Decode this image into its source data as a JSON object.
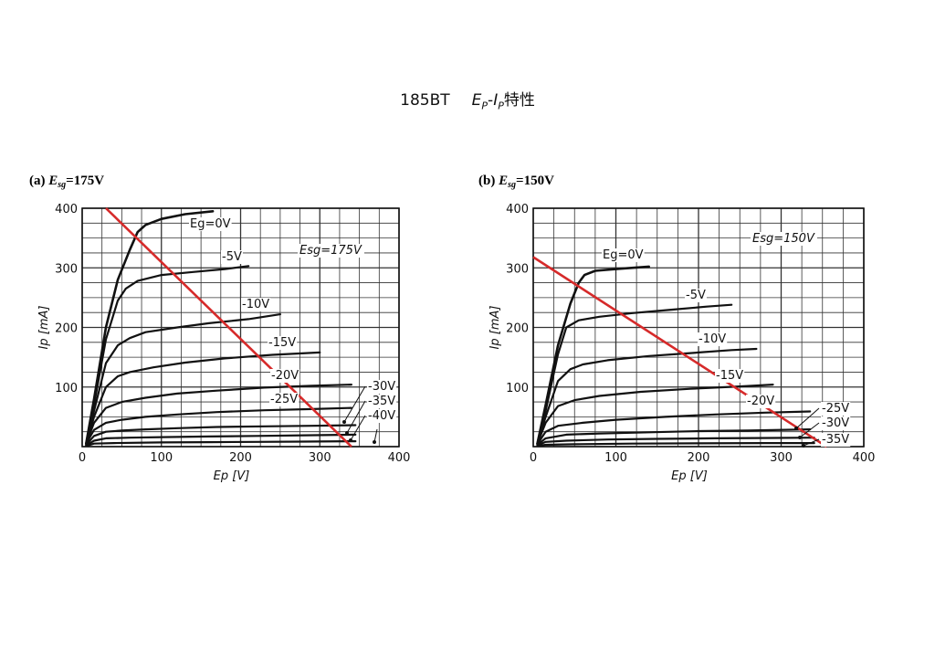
{
  "title": {
    "tube": "185BT",
    "characteristic_part1": "E",
    "characteristic_sub1": "P",
    "characteristic_dash": "-",
    "characteristic_part2": "I",
    "characteristic_sub2": "P",
    "characteristic_suffix": "特性"
  },
  "colors": {
    "load_line": "#d62a2a",
    "curve": "#111111",
    "grid": "#333333"
  },
  "chart_data": [
    {
      "type": "line",
      "panel_label": "(a)",
      "condition_symbol": "E",
      "condition_sub": "sg",
      "condition_value": "=175V",
      "param_text": "Esg=175V",
      "xlabel": "Ep [V]",
      "ylabel": "Ip [mA]",
      "xlim": [
        0,
        400
      ],
      "ylim": [
        0,
        400
      ],
      "xticks": [
        "0",
        "100",
        "200",
        "300",
        "400"
      ],
      "yticks": [
        "100",
        "200",
        "300",
        "400"
      ],
      "grid": true,
      "series": [
        {
          "name": "Eg=0V",
          "x": [
            5,
            15,
            30,
            45,
            60,
            70,
            80,
            100,
            130,
            165
          ],
          "y": [
            5,
            80,
            200,
            280,
            330,
            360,
            372,
            382,
            390,
            395
          ]
        },
        {
          "name": "-5V",
          "x": [
            5,
            15,
            30,
            45,
            55,
            70,
            100,
            140,
            180,
            210
          ],
          "y": [
            5,
            70,
            180,
            245,
            265,
            278,
            288,
            293,
            298,
            303
          ]
        },
        {
          "name": "-10V",
          "x": [
            5,
            15,
            30,
            45,
            60,
            80,
            120,
            160,
            210,
            250
          ],
          "y": [
            5,
            60,
            140,
            170,
            182,
            192,
            200,
            207,
            214,
            222
          ]
        },
        {
          "name": "-15V",
          "x": [
            5,
            15,
            30,
            45,
            60,
            90,
            130,
            180,
            240,
            300
          ],
          "y": [
            5,
            50,
            100,
            118,
            125,
            133,
            141,
            148,
            154,
            158
          ]
        },
        {
          "name": "-20V",
          "x": [
            5,
            15,
            30,
            50,
            80,
            120,
            170,
            230,
            290,
            340
          ],
          "y": [
            5,
            40,
            65,
            75,
            82,
            89,
            94,
            99,
            102,
            104
          ]
        },
        {
          "name": "-25V",
          "x": [
            5,
            15,
            30,
            50,
            80,
            120,
            170,
            230,
            290,
            340
          ],
          "y": [
            5,
            28,
            40,
            45,
            50,
            54,
            58,
            61,
            63,
            65
          ]
        },
        {
          "name": "-30V",
          "x": [
            5,
            15,
            30,
            50,
            80,
            120,
            170,
            230,
            290,
            345
          ],
          "y": [
            3,
            18,
            25,
            27,
            29,
            31,
            33,
            34,
            35,
            36
          ]
        },
        {
          "name": "-35V",
          "x": [
            5,
            15,
            30,
            60,
            100,
            160,
            220,
            280,
            345
          ],
          "y": [
            2,
            10,
            14,
            15,
            16,
            17,
            18,
            19,
            20
          ]
        },
        {
          "name": "-40V",
          "x": [
            5,
            15,
            40,
            100,
            160,
            220,
            280,
            345
          ],
          "y": [
            1,
            5,
            6,
            7,
            7.5,
            8,
            8.5,
            9
          ]
        }
      ],
      "load_line": {
        "x": [
          30,
          340
        ],
        "y": [
          400,
          0
        ]
      },
      "curve_labels": [
        "Eg=0V",
        "-5V",
        "-10V",
        "-15V",
        "-20V",
        "-25V",
        "-30V",
        "-35V",
        "-40V"
      ]
    },
    {
      "type": "line",
      "panel_label": "(b)",
      "condition_symbol": "E",
      "condition_sub": "sg",
      "condition_value": "=150V",
      "param_text": "Esg=150V",
      "xlabel": "Ep [V]",
      "ylabel": "Ip [mA]",
      "xlim": [
        0,
        400
      ],
      "ylim": [
        0,
        400
      ],
      "xticks": [
        "0",
        "100",
        "200",
        "300",
        "400"
      ],
      "yticks": [
        "100",
        "200",
        "300",
        "400"
      ],
      "grid": true,
      "series": [
        {
          "name": "Eg=0V",
          "x": [
            5,
            15,
            30,
            45,
            55,
            62,
            75,
            100,
            140
          ],
          "y": [
            5,
            70,
            170,
            240,
            275,
            288,
            295,
            298,
            302
          ]
        },
        {
          "name": "-5V",
          "x": [
            5,
            15,
            30,
            40,
            55,
            80,
            120,
            170,
            210,
            240
          ],
          "y": [
            5,
            60,
            155,
            200,
            212,
            218,
            224,
            230,
            235,
            238
          ]
        },
        {
          "name": "-10V",
          "x": [
            5,
            15,
            30,
            45,
            60,
            90,
            140,
            190,
            240,
            270
          ],
          "y": [
            5,
            50,
            110,
            130,
            138,
            145,
            152,
            157,
            162,
            164
          ]
        },
        {
          "name": "-15V",
          "x": [
            5,
            15,
            30,
            50,
            80,
            130,
            190,
            250,
            290
          ],
          "y": [
            5,
            40,
            68,
            78,
            85,
            92,
            97,
            101,
            104
          ]
        },
        {
          "name": "-20V",
          "x": [
            5,
            15,
            30,
            60,
            100,
            160,
            220,
            280,
            335
          ],
          "y": [
            4,
            25,
            35,
            40,
            45,
            50,
            54,
            57,
            59
          ]
        },
        {
          "name": "-25V",
          "x": [
            5,
            15,
            40,
            80,
            140,
            200,
            260,
            335
          ],
          "y": [
            3,
            14,
            20,
            22,
            24,
            26,
            27,
            29
          ]
        },
        {
          "name": "-30V",
          "x": [
            5,
            15,
            40,
            90,
            150,
            220,
            290,
            340
          ],
          "y": [
            2,
            8,
            10,
            12,
            13,
            14,
            14.5,
            15
          ]
        },
        {
          "name": "-35V",
          "x": [
            5,
            15,
            50,
            120,
            200,
            280,
            340
          ],
          "y": [
            1,
            3,
            4,
            5,
            5.5,
            6,
            6
          ]
        }
      ],
      "load_line": {
        "x": [
          0,
          355
        ],
        "y": [
          318,
          0
        ]
      },
      "curve_labels": [
        "Eg=0V",
        "-5V",
        "-10V",
        "-15V",
        "-20V",
        "-25V",
        "-30V",
        "-35V"
      ]
    }
  ]
}
